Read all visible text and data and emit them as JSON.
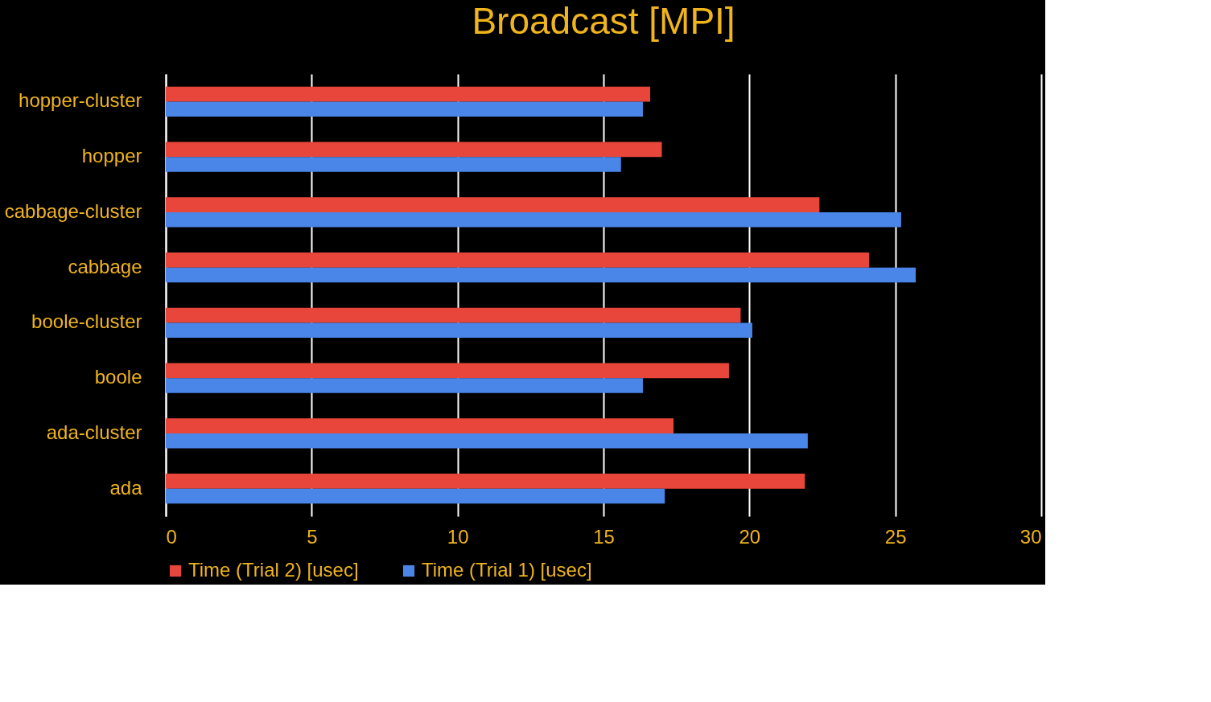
{
  "chart_data": {
    "type": "bar",
    "orientation": "horizontal",
    "title": "Broadcast [MPI]",
    "categories": [
      "hopper-cluster",
      "hopper",
      "cabbage-cluster",
      "cabbage",
      "boole-cluster",
      "boole",
      "ada-cluster",
      "ada"
    ],
    "series": [
      {
        "name": "Time (Trial 2) [usec]",
        "color": "#e8463a",
        "values": [
          16.6,
          17.0,
          22.4,
          24.1,
          19.7,
          19.3,
          17.4,
          21.9
        ]
      },
      {
        "name": "Time (Trial 1) [usec]",
        "color": "#4a86e8",
        "values": [
          16.35,
          15.6,
          25.2,
          25.7,
          20.1,
          16.35,
          22.0,
          17.1
        ]
      }
    ],
    "xlim": [
      0,
      30
    ],
    "xticks": [
      0,
      5,
      10,
      15,
      20,
      25,
      30
    ],
    "grid": "x",
    "legend": "bottom"
  }
}
